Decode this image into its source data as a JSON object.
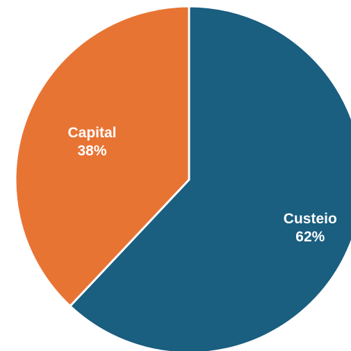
{
  "chart_data": {
    "type": "pie",
    "categories": [
      "Custeio",
      "Capital"
    ],
    "values": [
      62,
      38
    ],
    "value_labels": [
      "62%",
      "38%"
    ],
    "colors": [
      "#1a5e80",
      "#e87434"
    ],
    "slice_border_color": "#ffffff",
    "start": "12 o'clock",
    "direction": "clockwise",
    "legend": "none",
    "title": ""
  }
}
